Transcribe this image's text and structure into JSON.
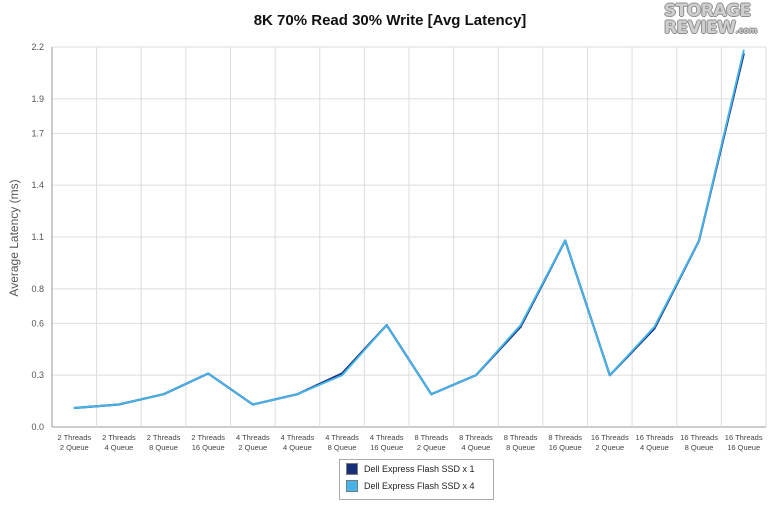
{
  "chart_data": {
    "type": "line",
    "title": "8K 70% Read 30% Write [Avg Latency]",
    "ylabel": "Average Latency (ms)",
    "xlabel": "",
    "ylim": [
      0,
      2.2
    ],
    "yticks": [
      "0.0",
      "0.3",
      "0.6",
      "0.8",
      "1.1",
      "1.4",
      "1.7",
      "1.9",
      "2.2"
    ],
    "grid": true,
    "legend_position": "bottom-center",
    "categories": [
      [
        "2 Threads",
        "2 Queue"
      ],
      [
        "2 Threads",
        "4 Queue"
      ],
      [
        "2 Threads",
        "8 Queue"
      ],
      [
        "2 Threads",
        "16 Queue"
      ],
      [
        "4 Threads",
        "2 Queue"
      ],
      [
        "4 Threads",
        "4 Queue"
      ],
      [
        "4 Threads",
        "8 Queue"
      ],
      [
        "4 Threads",
        "16 Queue"
      ],
      [
        "8 Threads",
        "2 Queue"
      ],
      [
        "8 Threads",
        "4 Queue"
      ],
      [
        "8 Threads",
        "8 Queue"
      ],
      [
        "8 Threads",
        "16 Queue"
      ],
      [
        "16 Threads",
        "2 Queue"
      ],
      [
        "16 Threads",
        "4 Queue"
      ],
      [
        "16 Threads",
        "8 Queue"
      ],
      [
        "16 Threads",
        "16 Queue"
      ]
    ],
    "series": [
      {
        "name": "Dell Express Flash SSD x 1",
        "color": "#1a2f7a",
        "values": [
          0.11,
          0.13,
          0.19,
          0.31,
          0.13,
          0.19,
          0.31,
          0.59,
          0.19,
          0.3,
          0.58,
          1.08,
          0.3,
          0.57,
          1.08,
          2.16
        ]
      },
      {
        "name": "Dell Express Flash SSD x 4",
        "color": "#45b4e8",
        "values": [
          0.11,
          0.13,
          0.19,
          0.31,
          0.13,
          0.19,
          0.3,
          0.59,
          0.19,
          0.3,
          0.59,
          1.08,
          0.3,
          0.58,
          1.08,
          2.18
        ]
      }
    ]
  },
  "logo": {
    "line1": "STORAGE",
    "line2": "REVIEW",
    "suffix": ".com"
  }
}
